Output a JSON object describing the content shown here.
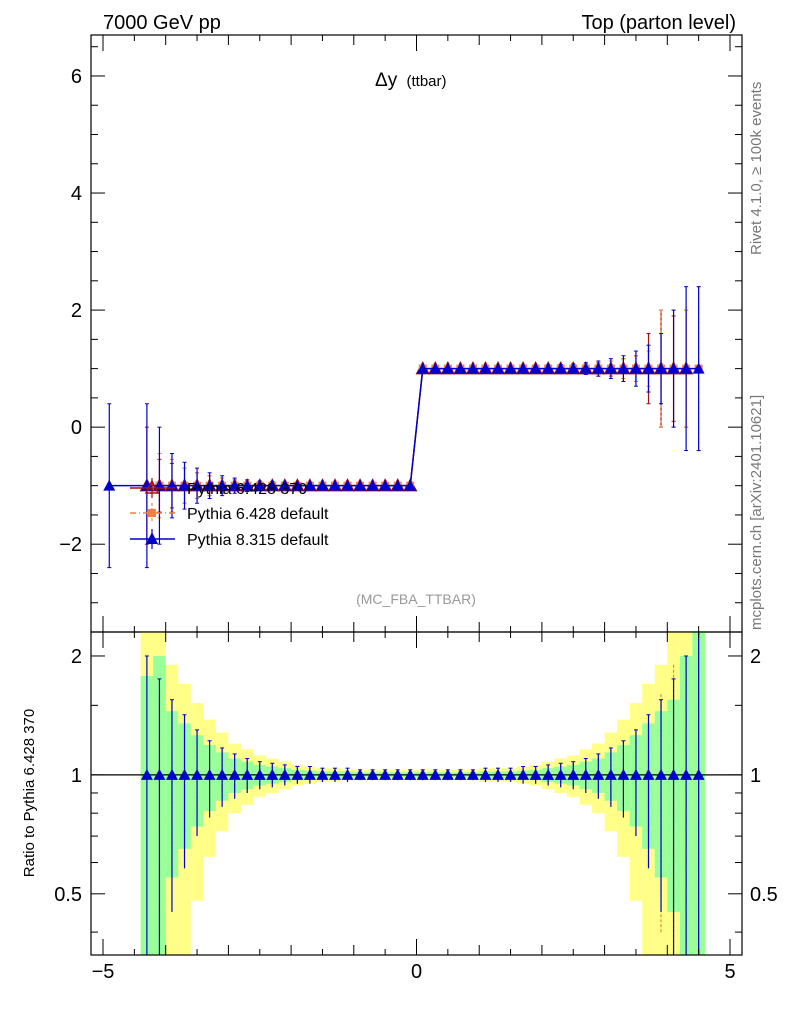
{
  "chart_data": {
    "type": "scatter",
    "header_left": "7000 GeV pp",
    "header_right": "Top (parton level)",
    "title": "Δy",
    "title_suffix": "(ttbar)",
    "analysis_tag": "(MC_FBA_TTBAR)",
    "side_label_top": "Rivet 4.1.0, ≥ 100k events",
    "side_label_bottom": "mcplots.cern.ch [arXiv:2401.10621]",
    "ratio_ylabel": "Ratio to Pythia 6.428 370",
    "xlim": [
      -5,
      5
    ],
    "ylim": [
      -3.5,
      6.7
    ],
    "ratio_ylim": [
      0.35,
      2.3
    ],
    "x_ticks": [
      -5,
      0,
      5
    ],
    "x_tick_labels": [
      "−5",
      "0",
      "5"
    ],
    "y_ticks": [
      -2,
      0,
      2,
      4,
      6
    ],
    "y_tick_labels": [
      "−2",
      "0",
      "2",
      "4",
      "6"
    ],
    "ratio_y_ticks": [
      0.5,
      1,
      2
    ],
    "ratio_y_tick_labels": [
      "0.5",
      "1",
      "2"
    ],
    "x_bins": [
      -4.9,
      -4.3,
      -4.1,
      -3.9,
      -3.7,
      -3.5,
      -3.3,
      -3.1,
      -2.9,
      -2.7,
      -2.5,
      -2.3,
      -2.1,
      -1.9,
      -1.7,
      -1.5,
      -1.3,
      -1.1,
      -0.9,
      -0.7,
      -0.5,
      -0.3,
      -0.1,
      0.1,
      0.3,
      0.5,
      0.7,
      0.9,
      1.1,
      1.3,
      1.5,
      1.7,
      1.9,
      2.1,
      2.3,
      2.5,
      2.7,
      2.9,
      3.1,
      3.3,
      3.5,
      3.7,
      3.9,
      4.1,
      4.3,
      4.5
    ],
    "legend": [
      "Pythia 6.428 370",
      "Pythia 6.428 default",
      "Pythia 8.315 default"
    ],
    "series": [
      {
        "name": "Pythia 6.428 370",
        "color": "#a01010",
        "marker": "open-triangle",
        "line": "solid",
        "x": [
          -4.3,
          -4.1,
          -3.9,
          -3.7,
          -3.5,
          -3.3,
          -3.1,
          -2.9,
          -2.7,
          -2.5,
          -2.3,
          -2.1,
          -1.9,
          -1.7,
          -1.5,
          -1.3,
          -1.1,
          -0.9,
          -0.7,
          -0.5,
          -0.3,
          -0.1,
          0.1,
          0.3,
          0.5,
          0.7,
          0.9,
          1.1,
          1.3,
          1.5,
          1.7,
          1.9,
          2.1,
          2.3,
          2.5,
          2.7,
          2.9,
          3.1,
          3.3,
          3.5,
          3.7,
          3.9,
          4.1,
          4.3
        ],
        "y": [
          -1,
          -1,
          -1,
          -1,
          -1,
          -1,
          -1,
          -1,
          -1,
          -1,
          -1,
          -1,
          -1,
          -1,
          -1,
          -1,
          -1,
          -1,
          -1,
          -1,
          -1,
          -1,
          1,
          1,
          1,
          1,
          1,
          1,
          1,
          1,
          1,
          1,
          1,
          1,
          1,
          1,
          1,
          1,
          1,
          1,
          1,
          1,
          1,
          1
        ],
        "yerr": [
          1.0,
          0.45,
          0.38,
          0.3,
          0.22,
          0.17,
          0.13,
          0.1,
          0.08,
          0.07,
          0.06,
          0.05,
          0.05,
          0.04,
          0.04,
          0.04,
          0.03,
          0.03,
          0.03,
          0.03,
          0.03,
          0.03,
          0.03,
          0.03,
          0.03,
          0.03,
          0.03,
          0.03,
          0.04,
          0.04,
          0.04,
          0.05,
          0.05,
          0.06,
          0.07,
          0.08,
          0.1,
          0.13,
          0.17,
          0.22,
          0.6,
          1.0,
          0.9,
          1.0
        ]
      },
      {
        "name": "Pythia 6.428 default",
        "color": "#f08040",
        "marker": "square",
        "line": "dash-dot",
        "x": [
          -4.1,
          -3.9,
          -3.7,
          -3.5,
          -3.3,
          -3.1,
          -2.9,
          -2.7,
          -2.5,
          -2.3,
          -2.1,
          -1.9,
          -1.7,
          -1.5,
          -1.3,
          -1.1,
          -0.9,
          -0.7,
          -0.5,
          -0.3,
          -0.1,
          0.1,
          0.3,
          0.5,
          0.7,
          0.9,
          1.1,
          1.3,
          1.5,
          1.7,
          1.9,
          2.1,
          2.3,
          2.5,
          2.7,
          2.9,
          3.1,
          3.3,
          3.5,
          3.7,
          3.9,
          4.1,
          4.3,
          4.5
        ],
        "y": [
          -1,
          -1,
          -1,
          -1,
          -1,
          -1,
          -1,
          -1,
          -1,
          -1,
          -1,
          -1,
          -1,
          -1,
          -1,
          -1,
          -1,
          -1,
          -1,
          -1,
          -1,
          1,
          1,
          1,
          1,
          1,
          1,
          1,
          1,
          1,
          1,
          1,
          1,
          1,
          1,
          1,
          1,
          1,
          1,
          1,
          1,
          1,
          1,
          1
        ],
        "yerr": [
          0.55,
          0.45,
          0.3,
          0.22,
          0.17,
          0.13,
          0.1,
          0.08,
          0.07,
          0.06,
          0.05,
          0.05,
          0.04,
          0.04,
          0.04,
          0.03,
          0.03,
          0.03,
          0.03,
          0.03,
          0.03,
          0.03,
          0.03,
          0.03,
          0.03,
          0.03,
          0.03,
          0.04,
          0.04,
          0.04,
          0.05,
          0.05,
          0.06,
          0.07,
          0.08,
          0.1,
          0.13,
          0.17,
          0.22,
          0.3,
          1.0,
          1.0,
          1.0,
          1.4
        ]
      },
      {
        "name": "Pythia 8.315 default",
        "color": "#0000cc",
        "marker": "filled-triangle",
        "line": "solid",
        "x": [
          -4.9,
          -4.3,
          -4.1,
          -3.9,
          -3.7,
          -3.5,
          -3.3,
          -3.1,
          -2.9,
          -2.7,
          -2.5,
          -2.3,
          -2.1,
          -1.9,
          -1.7,
          -1.5,
          -1.3,
          -1.1,
          -0.9,
          -0.7,
          -0.5,
          -0.3,
          -0.1,
          0.1,
          0.3,
          0.5,
          0.7,
          0.9,
          1.1,
          1.3,
          1.5,
          1.7,
          1.9,
          2.1,
          2.3,
          2.5,
          2.7,
          2.9,
          3.1,
          3.3,
          3.5,
          3.7,
          3.9,
          4.1,
          4.3,
          4.5
        ],
        "y": [
          -1,
          -1,
          -1,
          -1,
          -1,
          -1,
          -1,
          -1,
          -1,
          -1,
          -1,
          -1,
          -1,
          -1,
          -1,
          -1,
          -1,
          -1,
          -1,
          -1,
          -1,
          -1,
          -1,
          1,
          1,
          1,
          1,
          1,
          1,
          1,
          1,
          1,
          1,
          1,
          1,
          1,
          1,
          1,
          1,
          1,
          1,
          1,
          1,
          1,
          1,
          1
        ],
        "yerr": [
          1.4,
          1.4,
          1.0,
          0.55,
          0.4,
          0.3,
          0.22,
          0.17,
          0.13,
          0.1,
          0.08,
          0.07,
          0.06,
          0.05,
          0.05,
          0.04,
          0.04,
          0.04,
          0.03,
          0.03,
          0.03,
          0.03,
          0.03,
          0.03,
          0.03,
          0.03,
          0.03,
          0.03,
          0.04,
          0.04,
          0.04,
          0.05,
          0.05,
          0.06,
          0.07,
          0.08,
          0.1,
          0.13,
          0.17,
          0.22,
          0.3,
          0.4,
          0.6,
          1.0,
          1.4,
          1.4
        ]
      }
    ],
    "ratio": {
      "band_edges": [
        -4.4,
        -4.2,
        -4.0,
        -3.8,
        -3.6,
        -3.4,
        -3.2,
        -3.0,
        -2.8,
        -2.6,
        -2.4,
        -2.2,
        -2.0,
        -1.8,
        -1.6,
        -1.4,
        -1.2,
        -1.0,
        -0.8,
        -0.6,
        -0.4,
        -0.2,
        0.0,
        0.2,
        0.4,
        0.6,
        0.8,
        1.0,
        1.2,
        1.4,
        1.6,
        1.8,
        2.0,
        2.2,
        2.4,
        2.6,
        2.8,
        3.0,
        3.2,
        3.4,
        3.6,
        3.8,
        4.0,
        4.2,
        4.4,
        4.6
      ],
      "band_green_halfwidth": [
        0.78,
        1.0,
        0.45,
        0.35,
        0.26,
        0.19,
        0.14,
        0.1,
        0.08,
        0.06,
        0.05,
        0.04,
        0.03,
        0.025,
        0.02,
        0.02,
        0.02,
        0.015,
        0.015,
        0.015,
        0.015,
        0.015,
        0.015,
        0.015,
        0.015,
        0.015,
        0.015,
        0.02,
        0.02,
        0.02,
        0.025,
        0.03,
        0.04,
        0.05,
        0.06,
        0.08,
        0.1,
        0.14,
        0.19,
        0.26,
        0.35,
        0.45,
        0.55,
        1.0,
        1.3
      ],
      "band_yellow_halfwidth": [
        1.3,
        1.3,
        0.9,
        0.7,
        0.52,
        0.38,
        0.28,
        0.2,
        0.16,
        0.12,
        0.1,
        0.08,
        0.06,
        0.05,
        0.04,
        0.04,
        0.03,
        0.03,
        0.03,
        0.03,
        0.03,
        0.03,
        0.03,
        0.03,
        0.03,
        0.03,
        0.03,
        0.04,
        0.04,
        0.04,
        0.05,
        0.06,
        0.08,
        0.1,
        0.12,
        0.16,
        0.2,
        0.28,
        0.38,
        0.52,
        0.7,
        0.9,
        1.3,
        1.3,
        1.3
      ],
      "ratio_values": 1.0,
      "p6default_ratio_errors": [
        0.6,
        0.45,
        0.3,
        0.22,
        0.17,
        0.13,
        0.1,
        0.08,
        0.07,
        0.06,
        0.05,
        0.05,
        0.04,
        0.04,
        0.04,
        0.03,
        0.03,
        0.03,
        0.03,
        0.03,
        0.03,
        0.03,
        0.03,
        0.03,
        0.03,
        0.03,
        0.03,
        0.04,
        0.04,
        0.04,
        0.05,
        0.05,
        0.06,
        0.07,
        0.08,
        0.1,
        0.13,
        0.17,
        0.22,
        0.3,
        0.6,
        0.9,
        1.0,
        1.4
      ],
      "p8_ratio_errors": [
        1.0,
        0.75,
        0.55,
        0.42,
        0.3,
        0.22,
        0.17,
        0.13,
        0.1,
        0.08,
        0.07,
        0.06,
        0.05,
        0.05,
        0.04,
        0.04,
        0.04,
        0.03,
        0.03,
        0.03,
        0.03,
        0.03,
        0.03,
        0.03,
        0.03,
        0.03,
        0.03,
        0.04,
        0.04,
        0.04,
        0.05,
        0.05,
        0.06,
        0.07,
        0.08,
        0.1,
        0.13,
        0.17,
        0.22,
        0.3,
        0.42,
        0.55,
        0.75,
        1.0,
        1.4
      ]
    },
    "colors": {
      "axis": "#000000",
      "band_green": "#99ff99",
      "band_yellow": "#ffff88",
      "side_text": "#777777",
      "tag_text": "#999999"
    }
  }
}
